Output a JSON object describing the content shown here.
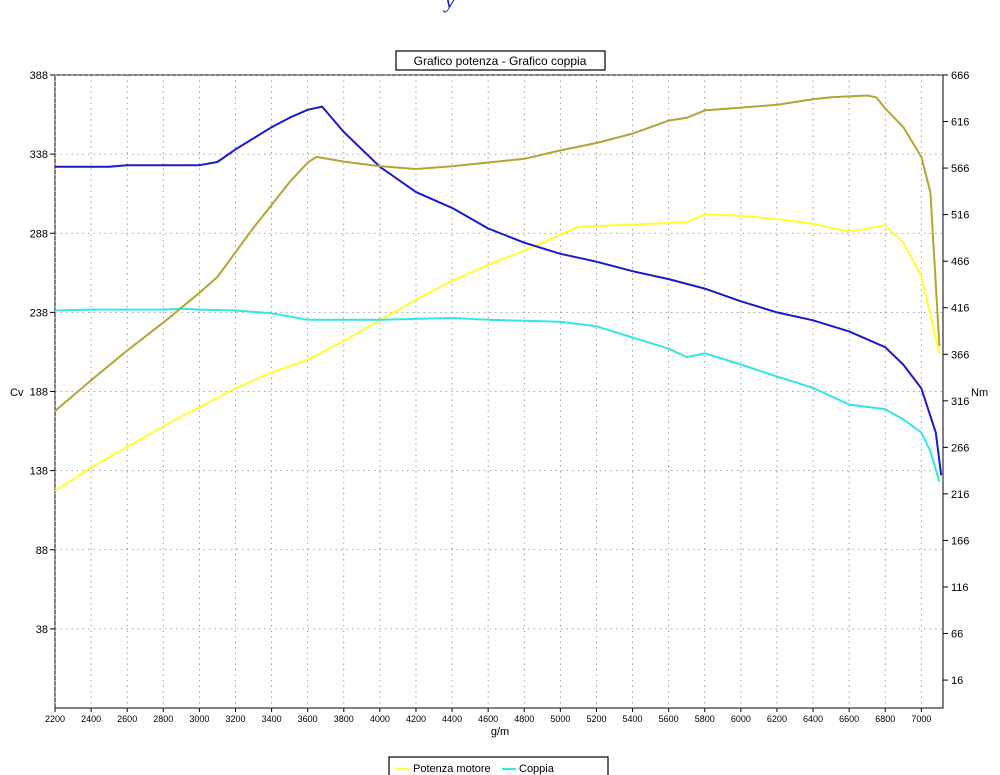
{
  "chart_data": {
    "type": "line",
    "title": "Grafico potenza - Grafico coppia",
    "xlabel": "g/m",
    "ylabel_left": "Cv",
    "ylabel_right": "Nm",
    "xlim": [
      2200,
      7120
    ],
    "ylim_left": [
      -12,
      388
    ],
    "ylim_right": [
      -14,
      666
    ],
    "x_ticks": [
      2200,
      2400,
      2600,
      2800,
      3000,
      3200,
      3400,
      3600,
      3800,
      4000,
      4200,
      4400,
      4600,
      4800,
      5000,
      5200,
      5400,
      5600,
      5800,
      6000,
      6200,
      6400,
      6600,
      6800,
      7000
    ],
    "y_left_ticks": [
      38,
      88,
      138,
      188,
      238,
      288,
      338,
      388
    ],
    "y_right_ticks": [
      16,
      66,
      116,
      166,
      216,
      266,
      316,
      366,
      416,
      466,
      516,
      566,
      616,
      666
    ],
    "grid": true,
    "legend_position": "bottom-center",
    "series": [
      {
        "name": "Potenza motore",
        "axis": "left",
        "color": "#ffff33",
        "points": [
          [
            2200,
            125
          ],
          [
            2400,
            140
          ],
          [
            2600,
            153
          ],
          [
            2800,
            166
          ],
          [
            3000,
            178
          ],
          [
            3200,
            190
          ],
          [
            3400,
            200
          ],
          [
            3600,
            208
          ],
          [
            3800,
            220
          ],
          [
            4000,
            233
          ],
          [
            4200,
            246
          ],
          [
            4400,
            258
          ],
          [
            4600,
            268
          ],
          [
            4800,
            277
          ],
          [
            5000,
            287
          ],
          [
            5100,
            292
          ],
          [
            5300,
            293
          ],
          [
            5500,
            294
          ],
          [
            5700,
            295
          ],
          [
            5800,
            300
          ],
          [
            6000,
            299
          ],
          [
            6200,
            297
          ],
          [
            6400,
            294
          ],
          [
            6600,
            289
          ],
          [
            6800,
            293
          ],
          [
            6900,
            282
          ],
          [
            7000,
            261
          ],
          [
            7100,
            212
          ]
        ]
      },
      {
        "name": "Coppia",
        "axis": "right",
        "color": "#33e6e6",
        "points": [
          [
            2200,
            413
          ],
          [
            2400,
            414
          ],
          [
            2600,
            414
          ],
          [
            2800,
            414
          ],
          [
            2900,
            415
          ],
          [
            3000,
            414
          ],
          [
            3200,
            413
          ],
          [
            3400,
            410
          ],
          [
            3600,
            403
          ],
          [
            3800,
            403
          ],
          [
            4000,
            403
          ],
          [
            4200,
            404
          ],
          [
            4400,
            405
          ],
          [
            4600,
            403
          ],
          [
            4800,
            402
          ],
          [
            5000,
            401
          ],
          [
            5200,
            396
          ],
          [
            5400,
            384
          ],
          [
            5600,
            372
          ],
          [
            5700,
            363
          ],
          [
            5800,
            367
          ],
          [
            6000,
            355
          ],
          [
            6200,
            342
          ],
          [
            6400,
            330
          ],
          [
            6600,
            312
          ],
          [
            6800,
            307
          ],
          [
            6900,
            296
          ],
          [
            7000,
            282
          ],
          [
            7050,
            262
          ],
          [
            7100,
            229
          ]
        ]
      },
      {
        "name": "",
        "axis": "left",
        "color": "#1a1acc",
        "points": [
          [
            2200,
            330
          ],
          [
            2500,
            330
          ],
          [
            2600,
            331
          ],
          [
            2800,
            331
          ],
          [
            3000,
            331
          ],
          [
            3100,
            333
          ],
          [
            3200,
            341
          ],
          [
            3400,
            355
          ],
          [
            3500,
            361
          ],
          [
            3600,
            366
          ],
          [
            3680,
            368
          ],
          [
            3800,
            352
          ],
          [
            4000,
            330
          ],
          [
            4200,
            314
          ],
          [
            4400,
            304
          ],
          [
            4600,
            291
          ],
          [
            4800,
            282
          ],
          [
            5000,
            275
          ],
          [
            5200,
            270
          ],
          [
            5400,
            264
          ],
          [
            5600,
            259
          ],
          [
            5800,
            253
          ],
          [
            6000,
            245
          ],
          [
            6200,
            238
          ],
          [
            6400,
            233
          ],
          [
            6600,
            226
          ],
          [
            6800,
            216
          ],
          [
            6900,
            205
          ],
          [
            7000,
            190
          ],
          [
            7080,
            162
          ],
          [
            7110,
            135
          ]
        ]
      },
      {
        "name": "",
        "axis": "right",
        "color": "#b3a533",
        "points": [
          [
            2200,
            305
          ],
          [
            2400,
            338
          ],
          [
            2600,
            370
          ],
          [
            2800,
            400
          ],
          [
            3000,
            432
          ],
          [
            3100,
            449
          ],
          [
            3300,
            502
          ],
          [
            3500,
            551
          ],
          [
            3600,
            572
          ],
          [
            3650,
            578
          ],
          [
            3800,
            573
          ],
          [
            4000,
            568
          ],
          [
            4200,
            565
          ],
          [
            4400,
            568
          ],
          [
            4600,
            572
          ],
          [
            4800,
            576
          ],
          [
            5000,
            585
          ],
          [
            5200,
            593
          ],
          [
            5400,
            603
          ],
          [
            5600,
            617
          ],
          [
            5700,
            620
          ],
          [
            5800,
            628
          ],
          [
            6000,
            631
          ],
          [
            6200,
            634
          ],
          [
            6400,
            640
          ],
          [
            6500,
            642
          ],
          [
            6600,
            643
          ],
          [
            6700,
            644
          ],
          [
            6750,
            642
          ],
          [
            6800,
            630
          ],
          [
            6900,
            610
          ],
          [
            7000,
            578
          ],
          [
            7050,
            540
          ],
          [
            7100,
            375
          ]
        ]
      }
    ]
  }
}
